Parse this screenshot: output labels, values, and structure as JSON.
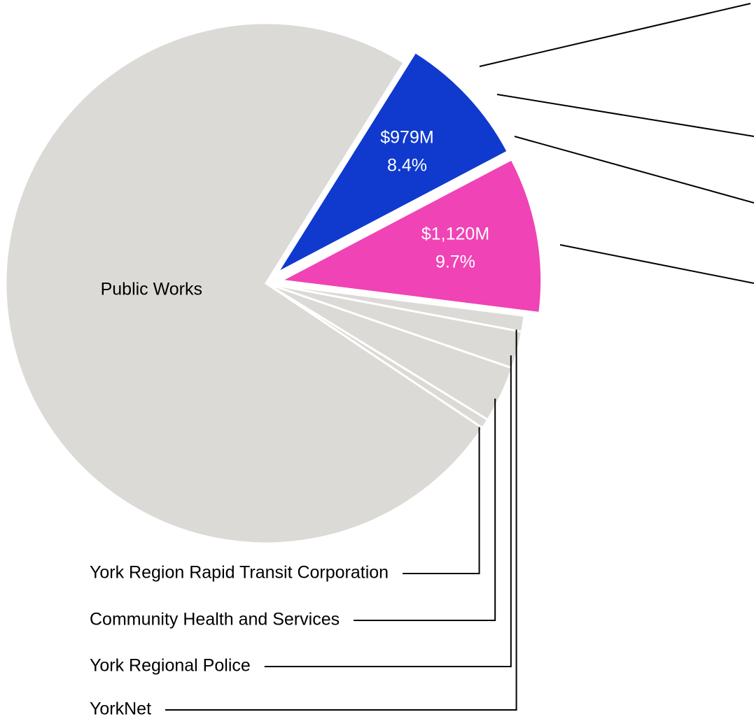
{
  "chart_data": {
    "type": "pie",
    "categories": [
      null,
      null,
      "YorkNet",
      "York Regional Police",
      "Community Health and Services",
      "York Region Rapid Transit Corporation",
      "Public Works"
    ],
    "values": [
      8.4,
      9.7,
      1.0,
      2.3,
      3.5,
      0.6,
      74.5
    ],
    "value_labels": [
      "8.4%",
      "9.7%",
      null,
      null,
      null,
      null,
      null
    ],
    "amounts": [
      979,
      1120,
      null,
      null,
      null,
      null,
      null
    ],
    "amount_labels": [
      "$979M",
      "$1,120M",
      null,
      null,
      null,
      null,
      null
    ],
    "colors": [
      "#0f3acd",
      "#f043b5",
      "#dbdad6",
      "#dbdad6",
      "#dbdad6",
      "#dbdad6",
      "#dbdad6"
    ]
  }
}
